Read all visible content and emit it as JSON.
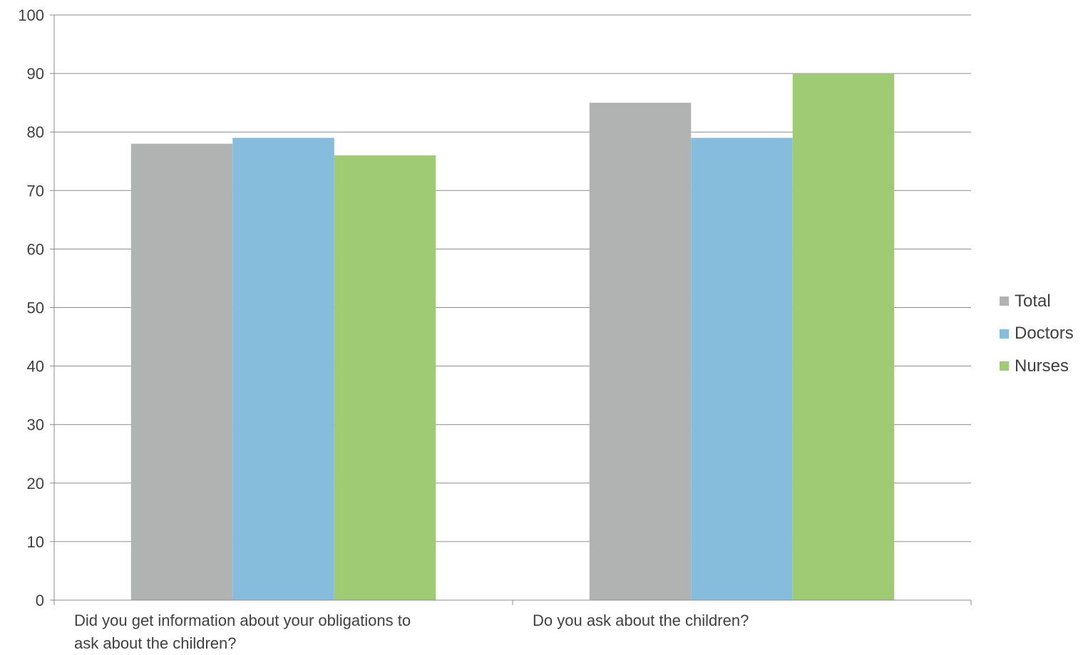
{
  "chart_data": {
    "type": "bar",
    "categories": [
      "Did you get information about your obligations to ask about the children?",
      "Do you ask about the children?"
    ],
    "category_lines": [
      [
        "Did you get information about your obligations to",
        "ask about the children?"
      ],
      [
        "Do you ask about the children?"
      ]
    ],
    "series": [
      {
        "name": "Total",
        "values": [
          78,
          85
        ],
        "color": "#b1b3b2"
      },
      {
        "name": "Doctors",
        "values": [
          79,
          79
        ],
        "color": "#86bddc"
      },
      {
        "name": "Nurses",
        "values": [
          76,
          90
        ],
        "color": "#a0cb75"
      }
    ],
    "ylim": [
      0,
      100
    ],
    "yticks": [
      0,
      10,
      20,
      30,
      40,
      50,
      60,
      70,
      80,
      90,
      100
    ],
    "grid": true,
    "legend_position": "right"
  }
}
